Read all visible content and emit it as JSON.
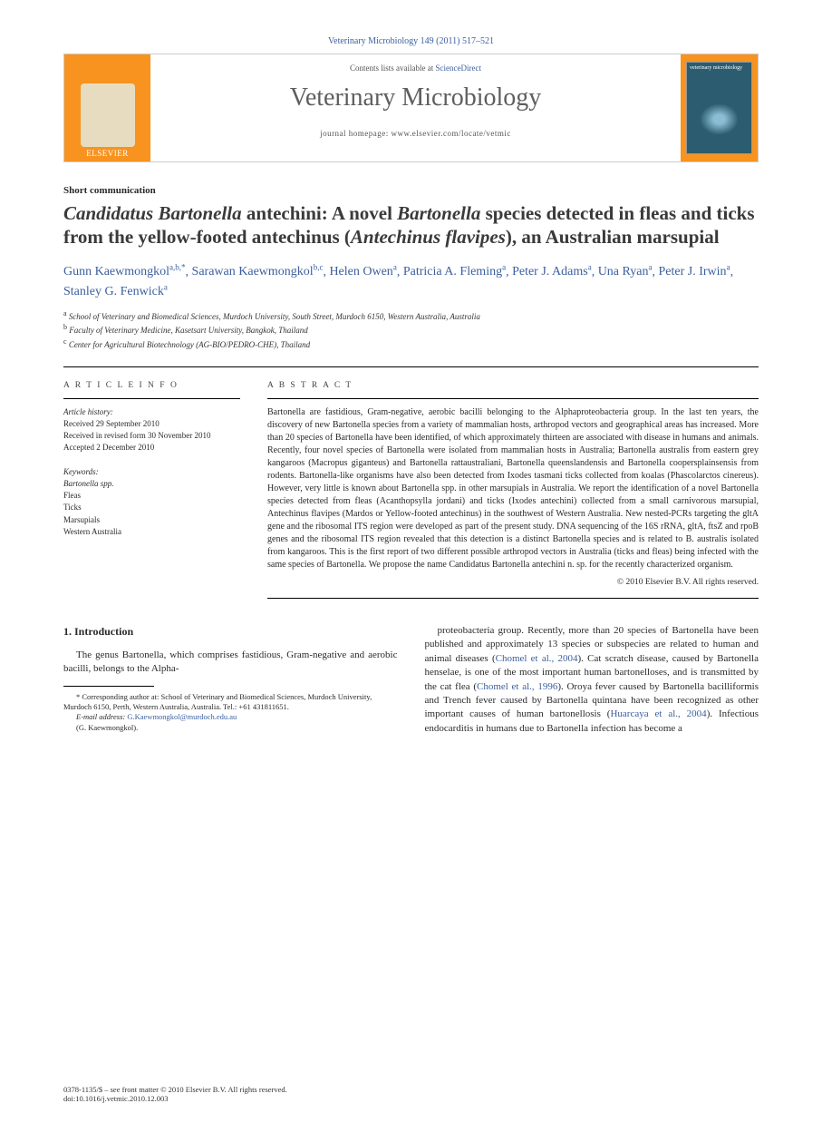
{
  "header": {
    "citation": "Veterinary Microbiology 149 (2011) 517–521",
    "contents_prefix": "Contents lists available at ",
    "contents_link": "ScienceDirect",
    "journal_name": "Veterinary Microbiology",
    "homepage_prefix": "journal homepage: ",
    "homepage_url": "www.elsevier.com/locate/vetmic",
    "publisher": "ELSEVIER",
    "cover_text": "veterinary microbiology"
  },
  "article": {
    "type": "Short communication",
    "title_parts": {
      "p1": "Candidatus Bartonella",
      "p2": " antechini: A novel ",
      "p3": "Bartonella",
      "p4": " species detected in fleas and ticks from the yellow-footed antechinus (",
      "p5": "Antechinus flavipes",
      "p6": "), an Australian marsupial"
    },
    "authors": {
      "a1": {
        "name": "Gunn Kaewmongkol",
        "sup": "a,b,*"
      },
      "a2": {
        "name": "Sarawan Kaewmongkol",
        "sup": "b,c"
      },
      "a3": {
        "name": "Helen Owen",
        "sup": "a"
      },
      "a4": {
        "name": "Patricia A. Fleming",
        "sup": "a"
      },
      "a5": {
        "name": "Peter J. Adams",
        "sup": "a"
      },
      "a6": {
        "name": "Una Ryan",
        "sup": "a"
      },
      "a7": {
        "name": "Peter J. Irwin",
        "sup": "a"
      },
      "a8": {
        "name": "Stanley G. Fenwick",
        "sup": "a"
      }
    },
    "affiliations": {
      "a": "School of Veterinary and Biomedical Sciences, Murdoch University, South Street, Murdoch 6150, Western Australia, Australia",
      "b": "Faculty of Veterinary Medicine, Kasetsart University, Bangkok, Thailand",
      "c": "Center for Agricultural Biotechnology (AG-BIO/PEDRO-CHE), Thailand"
    }
  },
  "info": {
    "heading": "A R T I C L E   I N F O",
    "history_label": "Article history:",
    "received": "Received 29 September 2010",
    "revised": "Received in revised form 30 November 2010",
    "accepted": "Accepted 2 December 2010",
    "keywords_label": "Keywords:",
    "keywords": [
      "Bartonella spp.",
      "Fleas",
      "Ticks",
      "Marsupials",
      "Western Australia"
    ]
  },
  "abstract": {
    "heading": "A B S T R A C T",
    "text": "Bartonella are fastidious, Gram-negative, aerobic bacilli belonging to the Alphaproteobacteria group. In the last ten years, the discovery of new Bartonella species from a variety of mammalian hosts, arthropod vectors and geographical areas has increased. More than 20 species of Bartonella have been identified, of which approximately thirteen are associated with disease in humans and animals. Recently, four novel species of Bartonella were isolated from mammalian hosts in Australia; Bartonella australis from eastern grey kangaroos (Macropus giganteus) and Bartonella rattaustraliani, Bartonella queenslandensis and Bartonella coopersplainsensis from rodents. Bartonella-like organisms have also been detected from Ixodes tasmani ticks collected from koalas (Phascolarctos cinereus). However, very little is known about Bartonella spp. in other marsupials in Australia. We report the identification of a novel Bartonella species detected from fleas (Acanthopsylla jordani) and ticks (Ixodes antechini) collected from a small carnivorous marsupial, Antechinus flavipes (Mardos or Yellow-footed antechinus) in the southwest of Western Australia. New nested-PCRs targeting the gltA gene and the ribosomal ITS region were developed as part of the present study. DNA sequencing of the 16S rRNA, gltA, ftsZ and rpoB genes and the ribosomal ITS region revealed that this detection is a distinct Bartonella species and is related to B. australis isolated from kangaroos. This is the first report of two different possible arthropod vectors in Australia (ticks and fleas) being infected with the same species of Bartonella. We propose the name Candidatus Bartonella antechini n. sp. for the recently characterized organism.",
    "copyright": "© 2010 Elsevier B.V. All rights reserved."
  },
  "body": {
    "section_heading": "1. Introduction",
    "left_text": "The genus Bartonella, which comprises fastidious, Gram-negative and aerobic bacilli, belongs to the Alpha-",
    "footnote": {
      "corr": "* Corresponding author at: School of Veterinary and Biomedical Sciences, Murdoch University, Murdoch 6150, Perth, Western Australia, Australia. Tel.: +61 431811651.",
      "email_label": "E-mail address:",
      "email": "G.Kaewmongkol@murdoch.edu.au",
      "email_name": "(G. Kaewmongkol)."
    },
    "right_text_parts": {
      "r1": "proteobacteria group. Recently, more than 20 species of Bartonella have been published and approximately 13 species or subspecies are related to human and animal diseases (",
      "r2": "Chomel et al., 2004",
      "r3": "). Cat scratch disease, caused by Bartonella henselae, is one of the most important human bartonelloses, and is transmitted by the cat flea (",
      "r4": "Chomel et al., 1996",
      "r5": "). Oroya fever caused by Bartonella bacilliformis and Trench fever caused by Bartonella quintana have been recognized as other important causes of human bartonellosis (",
      "r6": "Huarcaya et al., 2004",
      "r7": "). Infectious endocarditis in humans due to Bartonella infection has become a"
    }
  },
  "footer": {
    "issn": "0378-1135/$ – see front matter © 2010 Elsevier B.V. All rights reserved.",
    "doi": "doi:10.1016/j.vetmic.2010.12.003"
  },
  "colors": {
    "link": "#3b5f9e",
    "orange": "#f7931e",
    "text": "#2a2a2a"
  }
}
